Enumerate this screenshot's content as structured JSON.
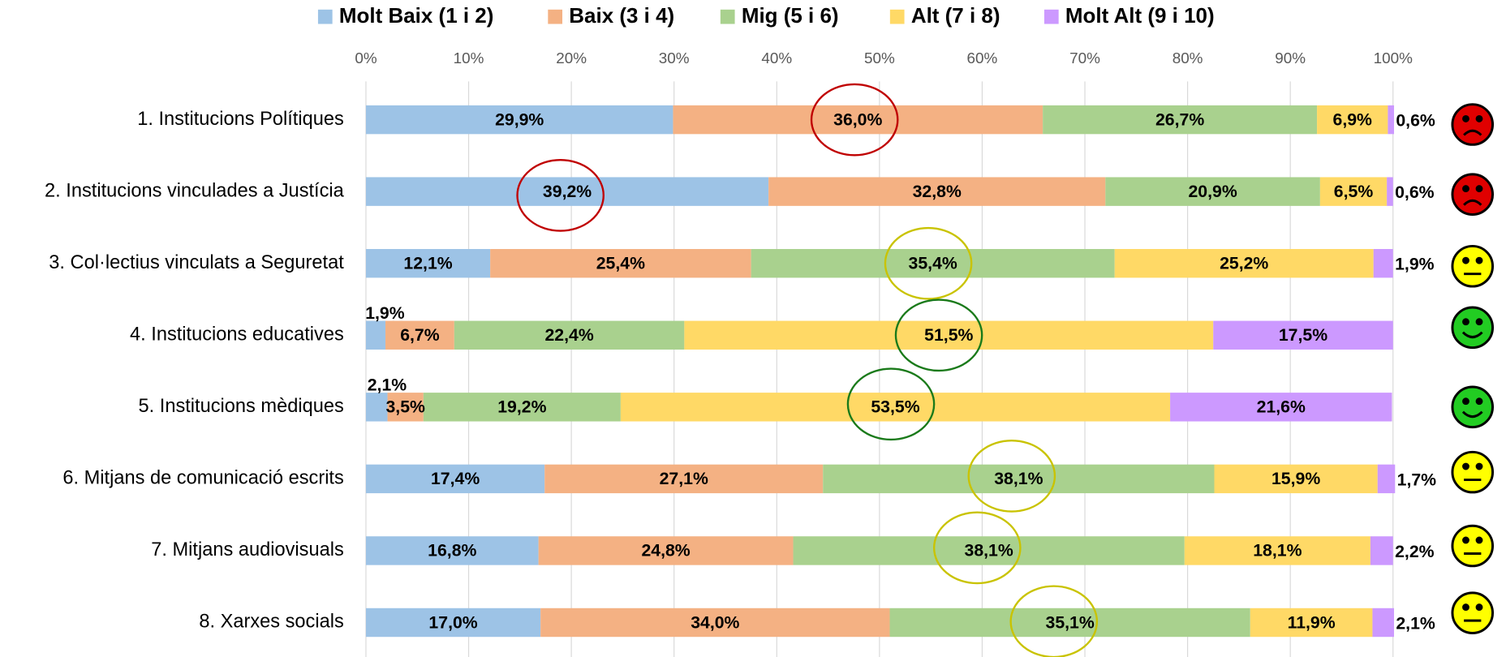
{
  "chart_data": {
    "type": "stacked-bar-horizontal",
    "categories": [
      "1. Institucions Polítiques",
      "2. Institucions vinculades a Justícia",
      "3. Col·lectius vinculats a Seguretat",
      "4. Institucions educatives",
      "5. Institucions mèdiques",
      "6. Mitjans de comunicació escrits",
      "7. Mitjans audiovisuals",
      "8. Xarxes socials"
    ],
    "series": [
      {
        "name": "Molt Baix (1 i 2)",
        "color": "#9dc3e6",
        "values": [
          29.9,
          39.2,
          12.1,
          1.9,
          2.1,
          17.4,
          16.8,
          17.0
        ],
        "value_labels": [
          "29,9%",
          "39,2%",
          "12,1%",
          "1,9%",
          "2,1%",
          "17,4%",
          "16,8%",
          "17,0%"
        ]
      },
      {
        "name": "Baix (3 i 4)",
        "color": "#f4b183",
        "values": [
          36.0,
          32.8,
          25.4,
          6.7,
          3.5,
          27.1,
          24.8,
          34.0
        ],
        "value_labels": [
          "36,0%",
          "32,8%",
          "25,4%",
          "6,7%",
          "3,5%",
          "27,1%",
          "24,8%",
          "34,0%"
        ]
      },
      {
        "name": "Mig (5 i 6)",
        "color": "#a9d18e",
        "values": [
          26.7,
          20.9,
          35.4,
          22.4,
          19.2,
          38.1,
          38.1,
          35.1
        ],
        "value_labels": [
          "26,7%",
          "20,9%",
          "35,4%",
          "22,4%",
          "19,2%",
          "38,1%",
          "38,1%",
          "35,1%"
        ]
      },
      {
        "name": "Alt (7 i 8)",
        "color": "#ffd966",
        "values": [
          6.9,
          6.5,
          25.2,
          51.5,
          53.5,
          15.9,
          18.1,
          11.9
        ],
        "value_labels": [
          "6,9%",
          "6,5%",
          "25,2%",
          "51,5%",
          "53,5%",
          "15,9%",
          "18,1%",
          "11,9%"
        ]
      },
      {
        "name": "Molt Alt (9 i 10)",
        "color": "#cc99ff",
        "values": [
          0.6,
          0.6,
          1.9,
          17.5,
          21.6,
          1.7,
          2.2,
          2.1
        ],
        "value_labels": [
          "0,6%",
          "0,6%",
          "1,9%",
          "17,5%",
          "21,6%",
          "1,7%",
          "2,2%",
          "2,1%"
        ]
      }
    ],
    "xlim": [
      0,
      100
    ],
    "xticks": [
      {
        "value": 0,
        "label": "0%"
      },
      {
        "value": 10,
        "label": "10%"
      },
      {
        "value": 20,
        "label": "20%"
      },
      {
        "value": 30,
        "label": "30%"
      },
      {
        "value": 40,
        "label": "40%"
      },
      {
        "value": 50,
        "label": "50%"
      },
      {
        "value": 60,
        "label": "60%"
      },
      {
        "value": 70,
        "label": "70%"
      },
      {
        "value": 80,
        "label": "80%"
      },
      {
        "value": 90,
        "label": "90%"
      },
      {
        "value": 100,
        "label": "100%"
      }
    ],
    "grid": true,
    "legend": "top"
  }
}
